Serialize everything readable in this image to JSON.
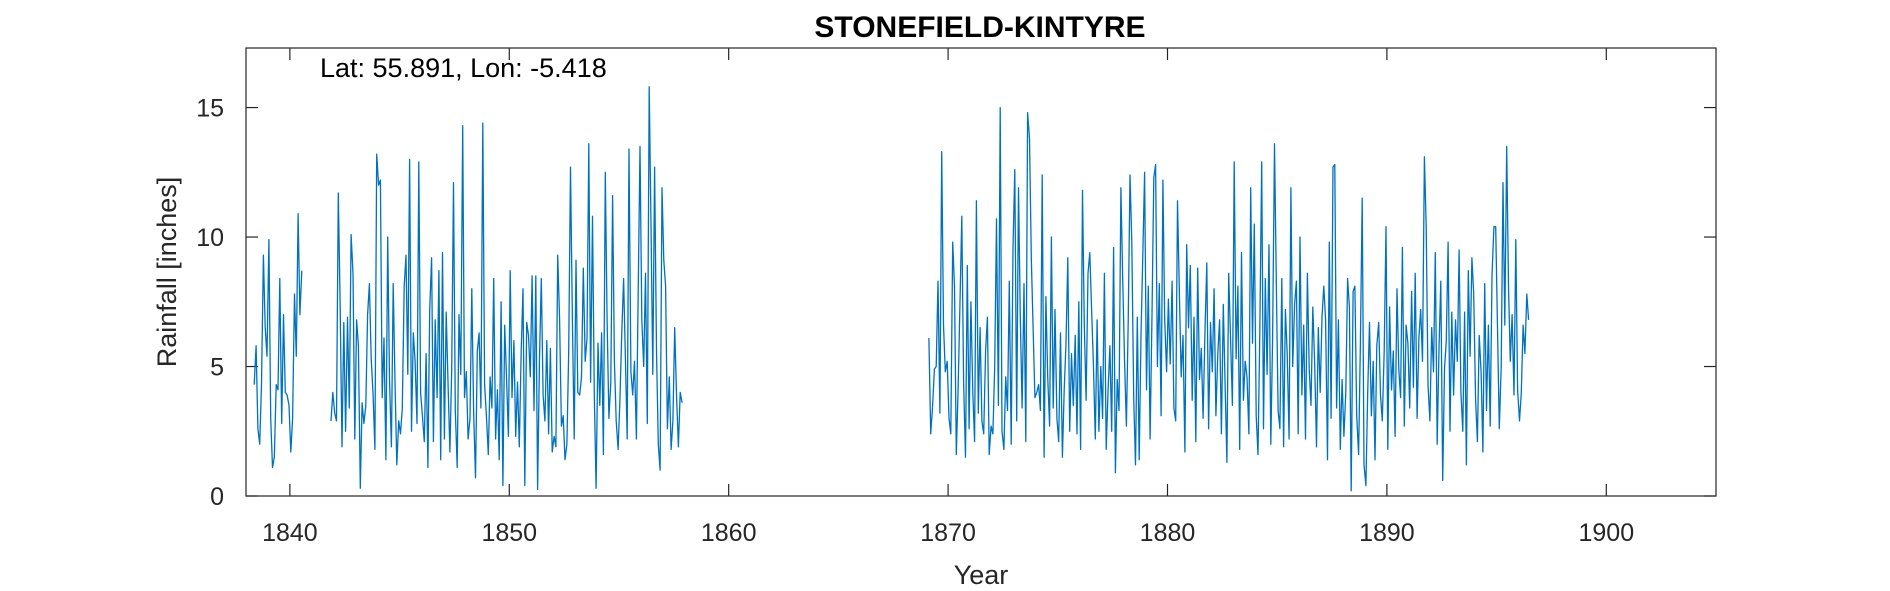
{
  "chart_data": {
    "type": "line",
    "title": "STONEFIELD-KINTYRE",
    "annotation": "Lat: 55.891, Lon: -5.418",
    "xlabel": "Year",
    "ylabel": "Rainfall [inches]",
    "xlim": [
      1838,
      1905
    ],
    "ylim": [
      0,
      17.3
    ],
    "xticks": [
      1840,
      1850,
      1860,
      1870,
      1880,
      1890,
      1900
    ],
    "yticks": [
      0,
      5,
      10,
      15
    ],
    "grid": false,
    "line_color": "#0072BD",
    "series": [
      {
        "segments": [
          {
            "start": 1838.375,
            "step": 0.0833333,
            "values": [
              4.3,
              5.8,
              2.6,
              2.0,
              4.3,
              9.3,
              6.5,
              5.4,
              9.9,
              3.0,
              1.1,
              1.5,
              4.3,
              4.1,
              8.4,
              2.8,
              7.0,
              4.0,
              3.9,
              3.5,
              1.7,
              3.0,
              7.8,
              5.4,
              10.9,
              7.0,
              8.7
            ]
          },
          {
            "start": 1841.875,
            "step": 0.0833333,
            "values": [
              2.9,
              4.0,
              3.2,
              2.9,
              11.7,
              7.2,
              1.9,
              6.7,
              2.5,
              6.9,
              3.4,
              10.1,
              8.6,
              2.2,
              6.8,
              5.8,
              0.3,
              3.6,
              2.8,
              3.5,
              7.0,
              8.2,
              5.3,
              3.9,
              1.8,
              13.2,
              12.0,
              12.2,
              3.8,
              6.1,
              1.4,
              10.0,
              4.5,
              1.9,
              8.2,
              4.4,
              1.2,
              2.9,
              2.4,
              3.4,
              8.1,
              9.3,
              4.7,
              13.0,
              2.5,
              6.3,
              5.2,
              2.8,
              12.9,
              4.0,
              3.1,
              2.1,
              5.5,
              1.1,
              7.2,
              9.2,
              2.1,
              6.8,
              3.8,
              8.7,
              1.4,
              9.4,
              2.2,
              7.1,
              4.4,
              1.7,
              4.9,
              12.1,
              3.3,
              1.1,
              7.0,
              4.7,
              14.3,
              3.8,
              4.8,
              2.2,
              3.0,
              8.0,
              3.3,
              0.7,
              5.6,
              6.3,
              3.4,
              14.4,
              4.3,
              3.1,
              1.6,
              4.6,
              3.4,
              8.4,
              2.2,
              4.1,
              1.4,
              7.5,
              0.4,
              6.6,
              4.6,
              2.3,
              8.7,
              3.8,
              6.0,
              2.3,
              4.4,
              1.9,
              5.6,
              8.0,
              0.4,
              6.7,
              6.2,
              4.6,
              8.5,
              3.3,
              8.5,
              0.25,
              5.3,
              8.4,
              3.9,
              2.9,
              6.0,
              2.4,
              5.7,
              1.7,
              2.3,
              1.9,
              9.3,
              6.8,
              2.7,
              3.1,
              1.4,
              2.0,
              5.6,
              12.7,
              6.8,
              2.2,
              9.1,
              4.0,
              3.9,
              4.6,
              8.8,
              5.2,
              6.1,
              13.6,
              4.4,
              10.8,
              3.9,
              0.3,
              5.9,
              3.5,
              6.3,
              1.6,
              12.5,
              6.8,
              3.0,
              4.4,
              11.6,
              5.2,
              2.9,
              1.8,
              3.7,
              6.2,
              8.4,
              5.3,
              2.2,
              13.4,
              4.8,
              3.9,
              5.2,
              2.2,
              7.9,
              13.5,
              6.8,
              5.0,
              8.6,
              2.8,
              15.8,
              10.5,
              4.7,
              12.7,
              5.6,
              2.0,
              1.0,
              11.9,
              9.1,
              8.1,
              2.6,
              4.6,
              1.8,
              2.9,
              6.5,
              3.8,
              1.9,
              4.0,
              3.6
            ]
          },
          {
            "start": 1869.125,
            "step": 0.0833333,
            "values": [
              6.1,
              2.4,
              3.4,
              4.9,
              5.0,
              8.3,
              3.2,
              13.3,
              6.6,
              4.8,
              5.2,
              3.0,
              2.4,
              9.8,
              8.1,
              1.6,
              4.1,
              7.5,
              10.8,
              4.4,
              1.5,
              8.9,
              2.6,
              7.5,
              4.0,
              2.1,
              11.4,
              3.2,
              6.5,
              2.9,
              2.4,
              5.6,
              6.9,
              1.6,
              2.7,
              2.4,
              5.0,
              10.7,
              3.5,
              15.0,
              2.5,
              1.8,
              4.6,
              3.3,
              8.3,
              2.0,
              9.6,
              12.6,
              2.9,
              11.9,
              6.9,
              3.4,
              8.2,
              2.1,
              14.8,
              13.8,
              9.2,
              6.5,
              3.8,
              4.0,
              4.3,
              3.3,
              12.4,
              1.5,
              7.7,
              4.6,
              2.7,
              10.0,
              3.4,
              7.2,
              3.0,
              2.1,
              6.3,
              1.5,
              4.1,
              5.9,
              9.2,
              2.5,
              5.5,
              3.5,
              6.2,
              2.4,
              7.5,
              1.8,
              11.8,
              6.6,
              3.7,
              8.6,
              9.4,
              7.2,
              5.1,
              2.2,
              6.8,
              2.5,
              5.0,
              3.0,
              8.6,
              1.8,
              4.1,
              5.8,
              2.5,
              9.6,
              0.9,
              4.5,
              3.3,
              11.9,
              8.4,
              5.3,
              2.7,
              6.7,
              12.4,
              9.8,
              3.8,
              1.2,
              6.9,
              1.4,
              6.2,
              9.3,
              12.5,
              4.1,
              8.1,
              2.2,
              7.0,
              12.3,
              12.8,
              5.0,
              8.2,
              3.1,
              12.2,
              6.8,
              4.8,
              7.6,
              5.1,
              8.3,
              3.4,
              2.9,
              11.4,
              7.8,
              4.6,
              6.2,
              1.7,
              9.7,
              6.5,
              8.9,
              3.7,
              6.9,
              2.1,
              8.8,
              4.5,
              5.7,
              3.0,
              6.4,
              9.0,
              2.6,
              6.7,
              4.8,
              8.0,
              3.1,
              5.5,
              6.8,
              2.4,
              7.4,
              4.3,
              1.3,
              8.6,
              6.0,
              3.5,
              12.9,
              5.3,
              8.1,
              1.8,
              9.4,
              3.7,
              5.2,
              4.6,
              2.4,
              11.9,
              5.9,
              10.5,
              3.1,
              1.6,
              6.3,
              12.9,
              2.6,
              8.4,
              4.7,
              9.7,
              2.0,
              6.1,
              13.6,
              8.3,
              3.3,
              2.6,
              8.4,
              1.9,
              7.2,
              5.5,
              2.2,
              11.9,
              5.0,
              7.4,
              8.3,
              2.4,
              10.0,
              3.9,
              6.6,
              2.2,
              8.6,
              4.9,
              3.5,
              7.3,
              5.1,
              1.9,
              6.5,
              4.0,
              6.9,
              8.1,
              6.8,
              1.4,
              9.8,
              3.0,
              12.7,
              12.8,
              3.4,
              6.8,
              1.8,
              4.5,
              2.3,
              4.0,
              8.4,
              7.3,
              0.2,
              7.9,
              8.1,
              3.1,
              1.6,
              5.9,
              11.5,
              1.2,
              0.4,
              4.0,
              6.7,
              3.1,
              5.2,
              1.4,
              5.8,
              6.7,
              3.9,
              2.9,
              5.6,
              10.4,
              1.8,
              7.3,
              4.1,
              5.6,
              2.3,
              8.0,
              4.9,
              3.8,
              9.6,
              2.7,
              6.6,
              5.9,
              3.4,
              7.9,
              4.2,
              8.6,
              3.0,
              6.1,
              7.2,
              5.2,
              13.1,
              10.4,
              4.3,
              2.9,
              6.5,
              4.8,
              9.4,
              2.0,
              5.7,
              8.3,
              0.6,
              4.9,
              6.0,
              9.8,
              2.5,
              7.1,
              3.9,
              6.8,
              5.2,
              9.5,
              4.0,
              2.5,
              7.1,
              1.2,
              8.7,
              5.4,
              9.2,
              7.8,
              3.7,
              2.1,
              6.2,
              4.8,
              1.7,
              8.2,
              3.3,
              6.6,
              2.7,
              8.5,
              10.4,
              10.4,
              6.5,
              2.6,
              5.0,
              12.1,
              6.6,
              13.5,
              8.1,
              5.2,
              7.0,
              3.9,
              9.9,
              4.1,
              2.9,
              4.0,
              6.6,
              5.5,
              7.8,
              6.8
            ]
          }
        ]
      }
    ]
  }
}
